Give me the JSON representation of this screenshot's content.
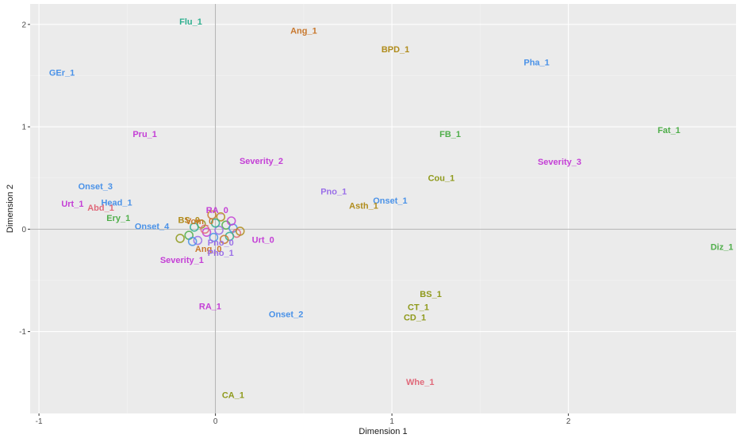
{
  "chart_data": {
    "type": "scatter",
    "xlabel": "Dimension 1",
    "ylabel": "Dimension 2",
    "xlim": [
      -1.05,
      2.95
    ],
    "ylim": [
      -1.8,
      2.2
    ],
    "x_ticks": [
      -1,
      0,
      1,
      2
    ],
    "y_ticks": [
      -1,
      0,
      1,
      2
    ],
    "x_tick_labels": [
      "-1",
      "0",
      "1",
      "2"
    ],
    "y_tick_labels": [
      "-1",
      "0",
      "1",
      "2"
    ],
    "grid": true,
    "reference_lines": [
      {
        "axis": "x",
        "value": 0
      },
      {
        "axis": "y",
        "value": 0
      }
    ],
    "colors": {
      "panel": "#ebebeb",
      "grid_major": "#ffffff",
      "grid_minor": "#f4f4f4",
      "reference": "#a6a6a6",
      "red": "#e0697a",
      "orange": "#c8772c",
      "mustard": "#b08c1c",
      "olive": "#8f9a1c",
      "green": "#4fae4a",
      "teal": "#2fb090",
      "blue": "#4a92e8",
      "purple": "#9a6fe8",
      "magenta": "#c43fd6"
    },
    "points": [
      {
        "label": "Flu_1",
        "x": -0.14,
        "y": 2.03,
        "color": "teal"
      },
      {
        "label": "Ang_1",
        "x": 0.5,
        "y": 1.94,
        "color": "orange"
      },
      {
        "label": "BPD_1",
        "x": 1.02,
        "y": 1.76,
        "color": "mustard"
      },
      {
        "label": "Pha_1",
        "x": 1.82,
        "y": 1.63,
        "color": "blue"
      },
      {
        "label": "GEr_1",
        "x": -0.87,
        "y": 1.53,
        "color": "blue"
      },
      {
        "label": "Fat_1",
        "x": 2.57,
        "y": 0.97,
        "color": "green"
      },
      {
        "label": "Pru_1",
        "x": -0.4,
        "y": 0.93,
        "color": "magenta"
      },
      {
        "label": "FB_1",
        "x": 1.33,
        "y": 0.93,
        "color": "green"
      },
      {
        "label": "Severity_2",
        "x": 0.26,
        "y": 0.67,
        "color": "magenta"
      },
      {
        "label": "Severity_3",
        "x": 1.95,
        "y": 0.66,
        "color": "magenta"
      },
      {
        "label": "Cou_1",
        "x": 1.28,
        "y": 0.5,
        "color": "olive"
      },
      {
        "label": "Onset_3",
        "x": -0.68,
        "y": 0.42,
        "color": "blue"
      },
      {
        "label": "Pno_1",
        "x": 0.67,
        "y": 0.37,
        "color": "purple"
      },
      {
        "label": "Onset_1",
        "x": 0.99,
        "y": 0.28,
        "color": "blue"
      },
      {
        "label": "Urt_1",
        "x": -0.81,
        "y": 0.25,
        "color": "magenta"
      },
      {
        "label": "Head_1",
        "x": -0.56,
        "y": 0.26,
        "color": "blue"
      },
      {
        "label": "Asth_1",
        "x": 0.84,
        "y": 0.23,
        "color": "mustard"
      },
      {
        "label": "Abd_1",
        "x": -0.65,
        "y": 0.21,
        "color": "red"
      },
      {
        "label": "RA_0",
        "x": 0.01,
        "y": 0.19,
        "color": "magenta"
      },
      {
        "label": "Ery_1",
        "x": -0.55,
        "y": 0.11,
        "color": "green"
      },
      {
        "label": "BS_0",
        "x": -0.15,
        "y": 0.09,
        "color": "mustard"
      },
      {
        "label": "Vom_0",
        "x": -0.09,
        "y": 0.08,
        "color": "orange"
      },
      {
        "label": "Onset_4",
        "x": -0.36,
        "y": 0.03,
        "color": "blue"
      },
      {
        "label": "Urt_0",
        "x": 0.27,
        "y": -0.1,
        "color": "magenta"
      },
      {
        "label": "Pno_0",
        "x": 0.03,
        "y": -0.13,
        "color": "purple"
      },
      {
        "label": "Ang_0",
        "x": -0.04,
        "y": -0.19,
        "color": "orange"
      },
      {
        "label": "Pho_1",
        "x": 0.03,
        "y": -0.23,
        "color": "purple"
      },
      {
        "label": "Severity_1",
        "x": -0.19,
        "y": -0.3,
        "color": "magenta"
      },
      {
        "label": "RA_1",
        "x": -0.03,
        "y": -0.75,
        "color": "magenta"
      },
      {
        "label": "BS_1",
        "x": 1.22,
        "y": -0.63,
        "color": "olive"
      },
      {
        "label": "CT_1",
        "x": 1.15,
        "y": -0.76,
        "color": "olive"
      },
      {
        "label": "Onset_2",
        "x": 0.4,
        "y": -0.83,
        "color": "blue"
      },
      {
        "label": "CD_1",
        "x": 1.13,
        "y": -0.86,
        "color": "olive"
      },
      {
        "label": "Diz_1",
        "x": 2.87,
        "y": -0.17,
        "color": "green"
      },
      {
        "label": "Whe_1",
        "x": 1.16,
        "y": -1.49,
        "color": "red"
      },
      {
        "label": "CA_1",
        "x": 0.1,
        "y": -1.62,
        "color": "olive"
      }
    ],
    "cluster_points": [
      {
        "x": -0.02,
        "y": 0.14,
        "color": "orange"
      },
      {
        "x": 0.03,
        "y": 0.12,
        "color": "mustard"
      },
      {
        "x": -0.08,
        "y": 0.05,
        "color": "olive"
      },
      {
        "x": 0.06,
        "y": 0.04,
        "color": "green"
      },
      {
        "x": -0.12,
        "y": 0.02,
        "color": "teal"
      },
      {
        "x": 0.1,
        "y": 0.01,
        "color": "blue"
      },
      {
        "x": 0.02,
        "y": -0.01,
        "color": "purple"
      },
      {
        "x": -0.05,
        "y": -0.03,
        "color": "magenta"
      },
      {
        "x": 0.12,
        "y": -0.04,
        "color": "red"
      },
      {
        "x": -0.15,
        "y": -0.06,
        "color": "green"
      },
      {
        "x": 0.08,
        "y": -0.07,
        "color": "teal"
      },
      {
        "x": -0.01,
        "y": -0.08,
        "color": "blue"
      },
      {
        "x": -0.2,
        "y": -0.09,
        "color": "olive"
      },
      {
        "x": 0.05,
        "y": -0.1,
        "color": "orange"
      },
      {
        "x": -0.1,
        "y": -0.11,
        "color": "purple"
      },
      {
        "x": 0.14,
        "y": -0.02,
        "color": "mustard"
      },
      {
        "x": -0.06,
        "y": 0.0,
        "color": "red"
      },
      {
        "x": 0.0,
        "y": 0.06,
        "color": "teal"
      },
      {
        "x": -0.13,
        "y": -0.12,
        "color": "blue"
      },
      {
        "x": 0.09,
        "y": 0.08,
        "color": "magenta"
      }
    ]
  }
}
